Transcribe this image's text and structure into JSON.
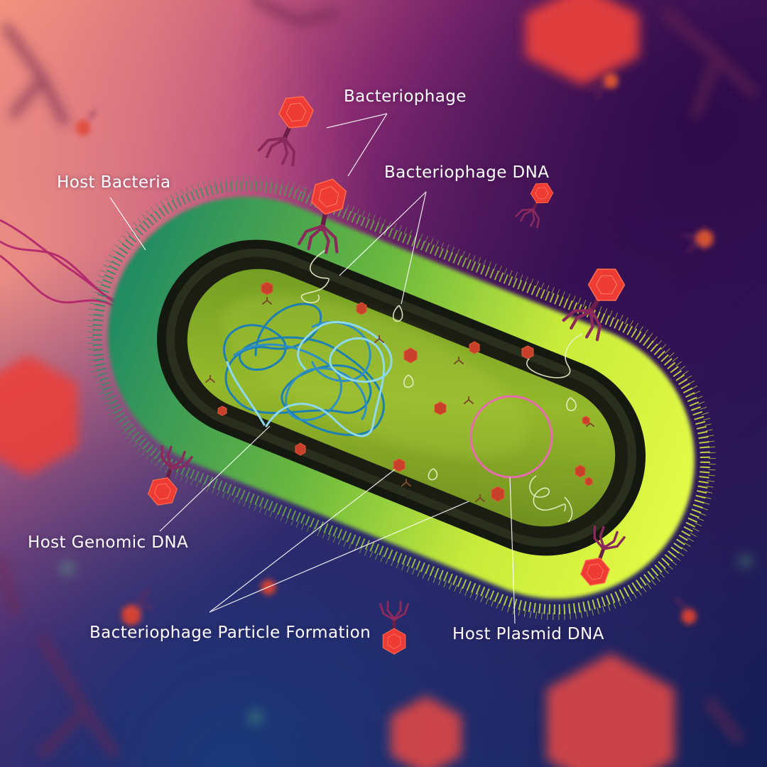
{
  "labels": {
    "bacteriophage": "Bacteriophage",
    "bacteriophage_dna": "Bacteriophage DNA",
    "host_bacteria": "Host Bacteria",
    "host_genomic_dna": "Host Genomic DNA",
    "bacteriophage_particle_formation": "Bacteriophage Particle Formation",
    "host_plasmid_dna": "Host Plasmid DNA"
  },
  "colors": {
    "background_top_left": "#f08a7a",
    "background_top_right": "#2a0a4a",
    "background_bottom": "#17366e",
    "fur_green": "#2f9b68",
    "fur_yellow": "#d8f53a",
    "cell_wall": "#1c1f14",
    "cytoplasm": "#8cb12a",
    "phage_capsid": "#ef3b36",
    "phage_tail": "#7a2150",
    "genomic_dna_dark": "#1d7fb2",
    "genomic_dna_light": "#8fd9ef",
    "plasmid_dna": "#e86ab0",
    "phage_dna": "#e8f0c8",
    "annotation_line": "#ffffff"
  }
}
